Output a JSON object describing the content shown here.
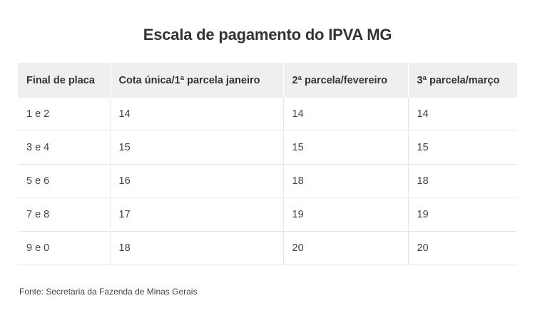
{
  "title": "Escala de pagamento do IPVA MG",
  "table": {
    "headers": [
      "Final de placa",
      "Cota única/1ª parcela janeiro",
      "2ª parcela/fevereiro",
      "3ª parcela/março"
    ],
    "rows": [
      [
        "1 e 2",
        "14",
        "14",
        "14"
      ],
      [
        "3 e 4",
        "15",
        "15",
        "15"
      ],
      [
        "5 e 6",
        "16",
        "18",
        "18"
      ],
      [
        "7 e 8",
        "17",
        "19",
        "19"
      ],
      [
        "9 e 0",
        "18",
        "20",
        "20"
      ]
    ]
  },
  "source": "Fonte: Secretaria da Fazenda de Minas Gerais",
  "colors": {
    "header_bg": "#efefef",
    "text": "#333333",
    "row_border": "#e8e8e8"
  }
}
